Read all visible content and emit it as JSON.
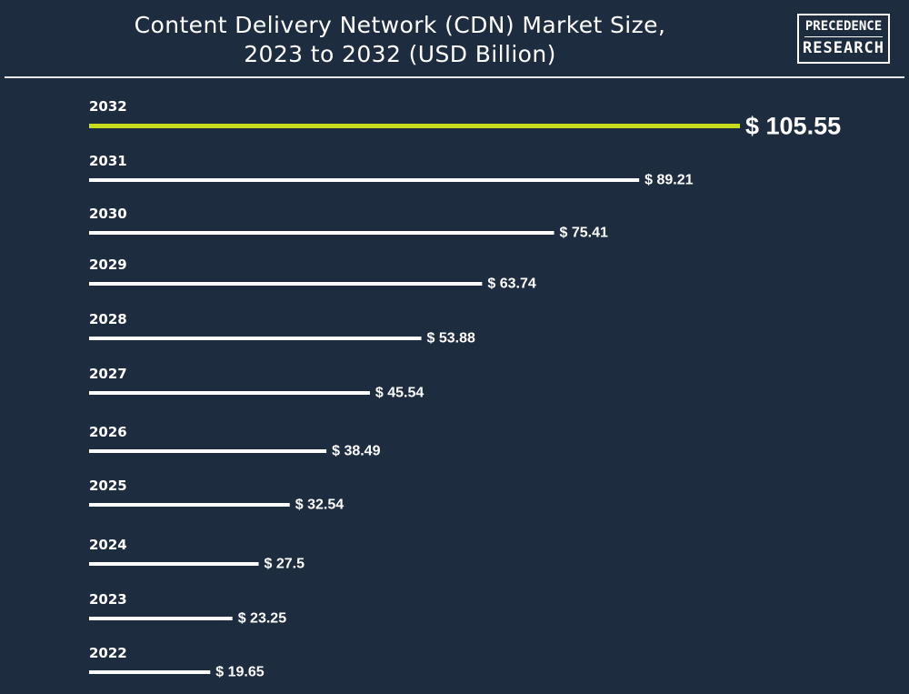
{
  "title_line1": "Content Delivery Network (CDN) Market Size,",
  "title_line2": "2023 to 2032 (USD Billion)",
  "logo": {
    "line1": "PRECEDENCE",
    "line2": "RESEARCH"
  },
  "colors": {
    "background": "#1d2c3f",
    "bar_default": "#ffffff",
    "bar_highlight": "#c8dc1e",
    "text": "#ffffff"
  },
  "chart_data": {
    "type": "bar",
    "orientation": "horizontal",
    "categories": [
      "2032",
      "2031",
      "2030",
      "2029",
      "2028",
      "2027",
      "2026",
      "2025",
      "2024",
      "2023",
      "2022"
    ],
    "values": [
      105.55,
      89.21,
      75.41,
      63.74,
      53.88,
      45.54,
      38.49,
      32.54,
      27.5,
      23.25,
      19.65
    ],
    "value_labels": [
      "$ 105.55",
      "$ 89.21",
      "$ 75.41",
      "$ 63.74",
      "$ 53.88",
      "$ 45.54",
      "$ 38.49",
      "$ 32.54",
      "$ 27.5",
      "$ 23.25",
      "$ 19.65"
    ],
    "highlight_category": "2032",
    "title": "Content Delivery Network (CDN) Market Size, 2023 to 2032 (USD Billion)",
    "xlabel": "",
    "ylabel": "",
    "grid": false,
    "legend": false
  }
}
